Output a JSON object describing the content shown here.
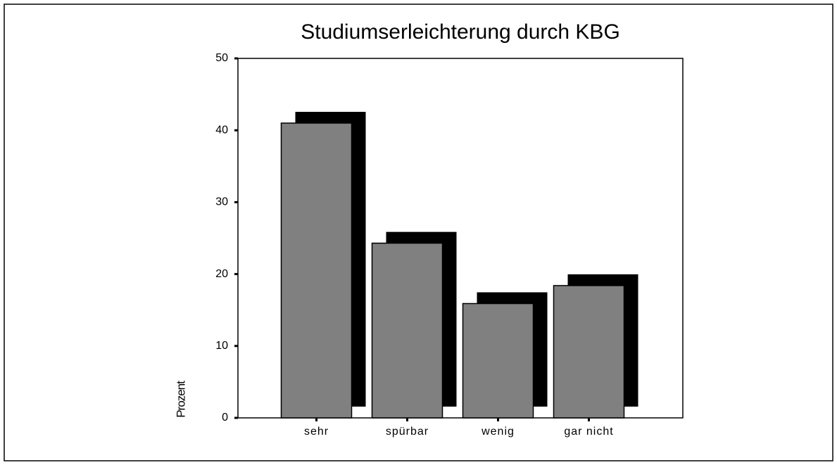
{
  "chart_data": {
    "type": "bar",
    "title": "Studiumserleichterung durch KBG",
    "y_label": "Prozent",
    "categories": [
      "sehr",
      "spürbar",
      "wenig",
      "gar nicht"
    ],
    "values": [
      41.0,
      24.3,
      15.9,
      18.4
    ],
    "color": "#808080",
    "shadow_color": "#000000",
    "ylim": [
      0,
      50
    ],
    "yticks": [
      0,
      10,
      20,
      30,
      40,
      50
    ],
    "grid": false
  }
}
